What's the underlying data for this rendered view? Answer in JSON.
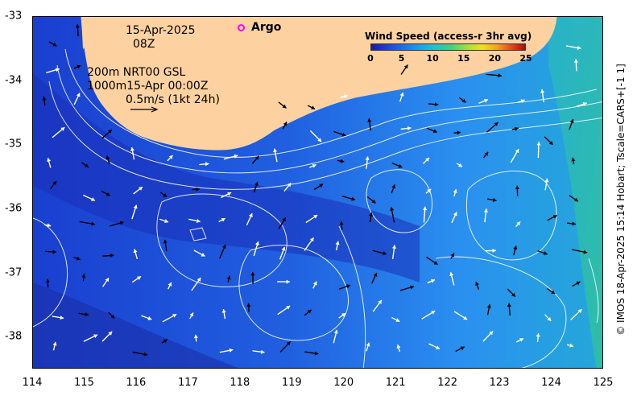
{
  "map": {
    "x_ticks": [
      "114",
      "115",
      "116",
      "117",
      "118",
      "119",
      "120",
      "121",
      "122",
      "123",
      "124",
      "125"
    ],
    "y_ticks": [
      "-33",
      "-34",
      "-35",
      "-36",
      "-37",
      "-38"
    ],
    "x_range": [
      114,
      125
    ],
    "y_range": [
      -38.5,
      -33
    ]
  },
  "annotations": {
    "date": "15-Apr-2025",
    "time": "08Z",
    "depth_line1": "200m  NRT00 GSL",
    "depth_line2": "1000m15-Apr 00:00Z",
    "scale_text": "0.5m/s (1kt 24h)"
  },
  "legend": {
    "argo_label": "Argo",
    "argo_color": "#ff00ff"
  },
  "colorbar": {
    "title": "Wind Speed (access-r 3hr avg)",
    "ticks": [
      "0",
      "5",
      "10",
      "15",
      "20",
      "25"
    ],
    "range": [
      0,
      25
    ]
  },
  "credit": "© IMOS 18-Apr-2025 15:14 Hobart; Tscale=CARS+[-1 1]",
  "colors": {
    "land": "#fdd2a0",
    "ocean_deep": "#1838c8",
    "ocean_mid": "#2a7ae8",
    "ocean_teal": "#30b0b0",
    "contour": "#ffffff"
  }
}
